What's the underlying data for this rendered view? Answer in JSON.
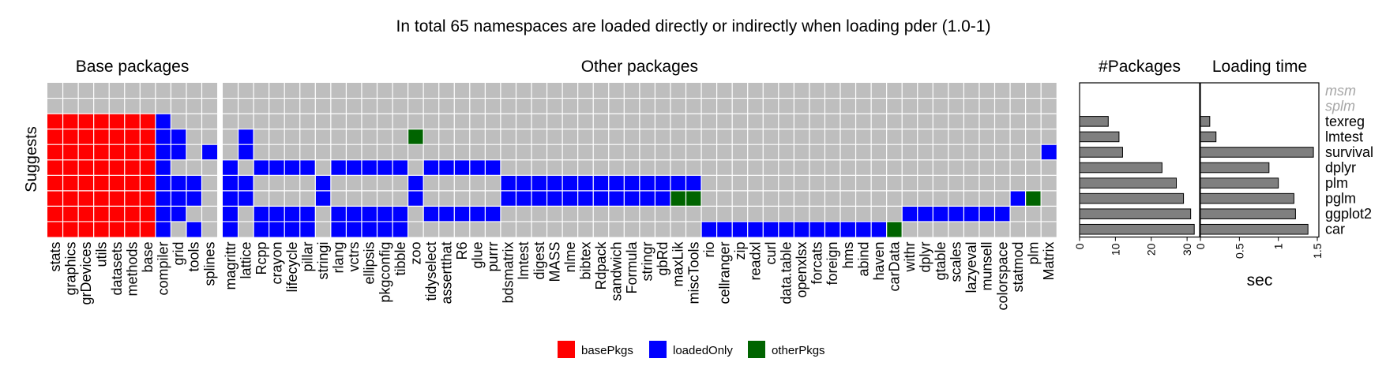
{
  "colors": {
    "basePkgs": "#ff0000",
    "loadedOnly": "#0000ff",
    "otherPkgs": "#006400",
    "panel_bg": "#bebebe",
    "bar_fill": "#7f7f7f",
    "dim_label": "#a6a6a6"
  },
  "chart_data": {
    "type": "heatmap",
    "title": "In total 65 namespaces are loaded directly or indirectly when loading pder (1.0-1)",
    "ylabel": "Suggests",
    "rows": [
      "msm",
      "splm",
      "texreg",
      "lmtest",
      "survival",
      "dplyr",
      "plm",
      "pglm",
      "ggplot2",
      "car"
    ],
    "dimmed_rows": [
      "msm",
      "splm"
    ],
    "groups": [
      {
        "name": "Base packages",
        "packages": [
          "stats",
          "graphics",
          "grDevices",
          "utils",
          "datasets",
          "methods",
          "base",
          "compiler",
          "grid",
          "tools",
          "splines"
        ]
      },
      {
        "name": "Other packages",
        "packages": [
          "magrittr",
          "lattice",
          "Rcpp",
          "crayon",
          "lifecycle",
          "pillar",
          "stringi",
          "rlang",
          "vctrs",
          "ellipsis",
          "pkgconfig",
          "tibble",
          "zoo",
          "tidyselect",
          "assertthat",
          "R6",
          "glue",
          "purrr",
          "bdsmatrix",
          "lmtest",
          "digest",
          "MASS",
          "nlme",
          "bibtex",
          "Rdpack",
          "sandwich",
          "Formula",
          "stringr",
          "gbRd",
          "maxLik",
          "miscTools",
          "rio",
          "cellranger",
          "zip",
          "readxl",
          "curl",
          "data.table",
          "openxlsx",
          "forcats",
          "foreign",
          "hms",
          "abind",
          "haven",
          "carData",
          "withr",
          "dplyr",
          "gtable",
          "scales",
          "lazyeval",
          "munsell",
          "colorspace",
          "statmod",
          "plm",
          "Matrix"
        ]
      }
    ],
    "legend": {
      "position": "bottom",
      "items": [
        {
          "key": "basePkgs",
          "label": "basePkgs"
        },
        {
          "key": "loadedOnly",
          "label": "loadedOnly"
        },
        {
          "key": "otherPkgs",
          "label": "otherPkgs"
        }
      ]
    },
    "cells": {
      "texreg": {
        "basePkgs": [
          "stats",
          "graphics",
          "grDevices",
          "utils",
          "datasets",
          "methods",
          "base"
        ],
        "loadedOnly": [
          "compiler"
        ],
        "otherPkgs": []
      },
      "lmtest": {
        "basePkgs": [
          "stats",
          "graphics",
          "grDevices",
          "utils",
          "datasets",
          "methods",
          "base"
        ],
        "loadedOnly": [
          "compiler",
          "grid",
          "lattice"
        ],
        "otherPkgs": [
          "zoo"
        ]
      },
      "survival": {
        "basePkgs": [
          "stats",
          "graphics",
          "grDevices",
          "utils",
          "datasets",
          "methods",
          "base"
        ],
        "loadedOnly": [
          "compiler",
          "grid",
          "splines",
          "lattice",
          "Matrix"
        ],
        "otherPkgs": []
      },
      "dplyr": {
        "basePkgs": [
          "stats",
          "graphics",
          "grDevices",
          "utils",
          "datasets",
          "methods",
          "base"
        ],
        "loadedOnly": [
          "compiler",
          "magrittr",
          "Rcpp",
          "crayon",
          "lifecycle",
          "pillar",
          "rlang",
          "vctrs",
          "ellipsis",
          "pkgconfig",
          "tibble",
          "tidyselect",
          "assertthat",
          "R6",
          "glue",
          "purrr"
        ],
        "otherPkgs": []
      },
      "plm": {
        "basePkgs": [
          "stats",
          "graphics",
          "grDevices",
          "utils",
          "datasets",
          "methods",
          "base"
        ],
        "loadedOnly": [
          "compiler",
          "grid",
          "tools",
          "magrittr",
          "lattice",
          "stringi",
          "zoo",
          "bdsmatrix",
          "lmtest",
          "digest",
          "MASS",
          "nlme",
          "bibtex",
          "Rdpack",
          "sandwich",
          "Formula",
          "stringr",
          "gbRd",
          "maxLik",
          "miscTools"
        ],
        "otherPkgs": []
      },
      "pglm": {
        "basePkgs": [
          "stats",
          "graphics",
          "grDevices",
          "utils",
          "datasets",
          "methods",
          "base"
        ],
        "loadedOnly": [
          "compiler",
          "grid",
          "tools",
          "magrittr",
          "lattice",
          "stringi",
          "zoo",
          "bdsmatrix",
          "lmtest",
          "digest",
          "MASS",
          "nlme",
          "bibtex",
          "Rdpack",
          "sandwich",
          "Formula",
          "stringr",
          "gbRd",
          "statmod"
        ],
        "otherPkgs": [
          "maxLik",
          "miscTools",
          "plm"
        ]
      },
      "ggplot2": {
        "basePkgs": [
          "stats",
          "graphics",
          "grDevices",
          "utils",
          "datasets",
          "methods",
          "base"
        ],
        "loadedOnly": [
          "compiler",
          "grid",
          "magrittr",
          "Rcpp",
          "crayon",
          "lifecycle",
          "pillar",
          "rlang",
          "vctrs",
          "ellipsis",
          "pkgconfig",
          "tibble",
          "tidyselect",
          "assertthat",
          "R6",
          "glue",
          "purrr",
          "withr",
          "dplyr",
          "gtable",
          "scales",
          "lazyeval",
          "munsell",
          "colorspace"
        ],
        "otherPkgs": []
      },
      "car": {
        "basePkgs": [
          "stats",
          "graphics",
          "grDevices",
          "utils",
          "datasets",
          "methods",
          "base"
        ],
        "loadedOnly": [
          "compiler",
          "tools",
          "magrittr",
          "Rcpp",
          "crayon",
          "lifecycle",
          "pillar",
          "rlang",
          "vctrs",
          "ellipsis",
          "pkgconfig",
          "tibble",
          "rio",
          "cellranger",
          "zip",
          "readxl",
          "curl",
          "data.table",
          "openxlsx",
          "forcats",
          "foreign",
          "hms",
          "abind",
          "haven"
        ],
        "otherPkgs": [
          "carData"
        ]
      }
    },
    "side_panels": [
      {
        "title": "#Packages",
        "type": "bar",
        "xlabel": "",
        "xlim": [
          0,
          33.5
        ],
        "ticks": [
          {
            "value": 0,
            "label": "0"
          },
          {
            "value": 10,
            "label": "10"
          },
          {
            "value": 20,
            "label": "20"
          },
          {
            "value": 30,
            "label": "30"
          }
        ],
        "values": {
          "msm": null,
          "splm": null,
          "texreg": 8,
          "lmtest": 11,
          "survival": 12,
          "dplyr": 23,
          "plm": 27,
          "pglm": 29,
          "ggplot2": 31,
          "car": 32
        }
      },
      {
        "title": "Loading time",
        "type": "bar",
        "xlabel": "sec",
        "xlim": [
          0,
          1.52
        ],
        "ticks": [
          {
            "value": 0,
            "label": "0"
          },
          {
            "value": 0.5,
            "label": "0.5"
          },
          {
            "value": 1,
            "label": "1"
          },
          {
            "value": 1.5,
            "label": "1.5"
          }
        ],
        "values": {
          "msm": null,
          "splm": null,
          "texreg": 0.12,
          "lmtest": 0.2,
          "survival": 1.45,
          "dplyr": 0.88,
          "plm": 1.0,
          "pglm": 1.2,
          "ggplot2": 1.22,
          "car": 1.38
        }
      }
    ]
  }
}
